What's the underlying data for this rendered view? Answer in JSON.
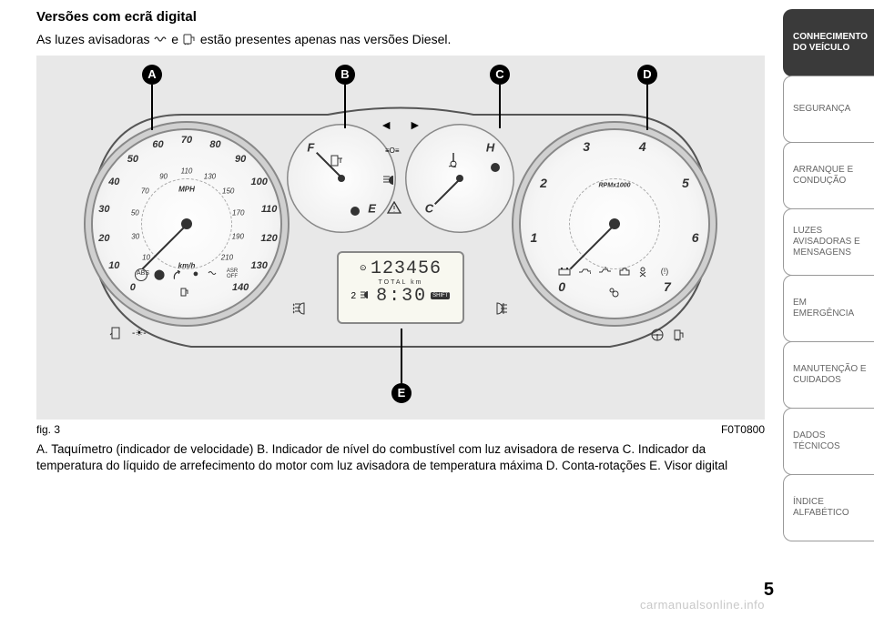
{
  "title": "Versões com ecrã digital",
  "intro_before": "As luzes avisadoras ",
  "intro_mid": " e ",
  "intro_after": " estão presentes apenas nas versões Diesel.",
  "callouts": {
    "A": "A",
    "B": "B",
    "C": "C",
    "D": "D",
    "E": "E"
  },
  "speedo": {
    "outer_numbers": [
      "0",
      "10",
      "20",
      "30",
      "40",
      "50",
      "60",
      "70",
      "80",
      "90",
      "100",
      "110",
      "120",
      "130",
      "140"
    ],
    "inner_numbers": [
      "10",
      "30",
      "50",
      "70",
      "90",
      "110",
      "130",
      "150",
      "170",
      "190",
      "210"
    ],
    "unit_outer": "MPH",
    "unit_inner": "km/h",
    "warning_icons": [
      "(ABS)",
      "(!)",
      "ESC",
      "ECO",
      "GLOW",
      "ASR OFF",
      "FUEL"
    ]
  },
  "tacho": {
    "numbers": [
      "0",
      "1",
      "2",
      "3",
      "4",
      "5",
      "6",
      "7"
    ],
    "label": "RPMx1000",
    "warning_icons": [
      "BAT",
      "OIL",
      "TEMP",
      "ENG",
      "BELT",
      "TPMS",
      "AIRBAG"
    ]
  },
  "fuel": {
    "labels": [
      "F",
      "E"
    ],
    "icon": "fuel-pump"
  },
  "temp": {
    "labels": [
      "C",
      "H"
    ],
    "icon": "thermometer"
  },
  "center_tell_tales": [
    "left-arrow",
    "right-arrow",
    "lights",
    "low-beam",
    "fog-front",
    "fog-rear",
    "warning-triangle"
  ],
  "lcd": {
    "odo": "123456",
    "odo_label": "TOTAL    km",
    "clock": "8:30",
    "extras": [
      "2",
      "SHIFT"
    ]
  },
  "fig_label": "fig. 3",
  "fig_code": "F0T0800",
  "caption": "A. Taquímetro (indicador de velocidade) B. Indicador de nível do combustível com luz avisadora de reserva C. Indicador da temperatura do líquido de arrefecimento do motor com luz avisadora de temperatura máxima D. Conta-rotações E. Visor digital",
  "sidebar": [
    {
      "label": "CONHECIMENTO DO VEÍCULO",
      "active": true
    },
    {
      "label": "SEGURANÇA",
      "active": false
    },
    {
      "label": "ARRANQUE E CONDUÇÃO",
      "active": false
    },
    {
      "label": "LUZES AVISADORAS E MENSAGENS",
      "active": false
    },
    {
      "label": "EM EMERGÊNCIA",
      "active": false
    },
    {
      "label": "MANUTENÇÃO E CUIDADOS",
      "active": false
    },
    {
      "label": "DADOS TÉCNICOS",
      "active": false
    },
    {
      "label": "ÍNDICE ALFABÉTICO",
      "active": false
    }
  ],
  "page_number": "5",
  "watermark": "carmanualsonline.info",
  "colors": {
    "page_bg": "#ffffff",
    "figure_bg": "#e8e8e8",
    "callout_bg": "#000000",
    "callout_fg": "#ffffff",
    "dial_face": "#f7f7f7",
    "text": "#333333",
    "tab_active_bg": "#3a3a3a",
    "tab_border": "#999999"
  }
}
